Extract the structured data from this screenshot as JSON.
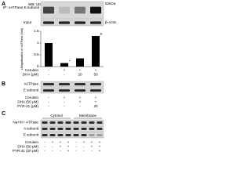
{
  "panel_a": {
    "letter": "A",
    "ip_label": "IP: vATPase E-subunit",
    "wb_label": "WB: Ub",
    "kda": "52kDa",
    "input_label": "Input",
    "input_band": "β-Actin",
    "conditions": [
      {
        "label": "Cerulein",
        "signs": [
          "-",
          "+",
          "+",
          "+"
        ]
      },
      {
        "label": "DHA (μM)",
        "signs": [
          "-",
          "-",
          "20",
          "50"
        ]
      }
    ],
    "chart": {
      "type": "bar",
      "y_label": "Ubiquitination of vATPase (fold)",
      "values": [
        1,
        0.15,
        0.35,
        1.3
      ],
      "ylim": [
        0,
        1.5
      ],
      "yticks": [
        0,
        0.5,
        1,
        1.5
      ],
      "color": "#000000",
      "markers": [
        null,
        "*",
        null,
        "#"
      ]
    },
    "chart_conditions": [
      {
        "label": "Cerulein",
        "signs": [
          "-",
          "+",
          "+",
          "+"
        ]
      },
      {
        "label": "DHA (μM)",
        "signs": [
          "-",
          "-",
          "20",
          "50"
        ]
      }
    ]
  },
  "panel_b": {
    "letter": "B",
    "bands": [
      "vATPase",
      "E subunit"
    ],
    "conditions": [
      {
        "label": "Cerulein",
        "signs": [
          "-",
          "+",
          "+",
          "+"
        ]
      },
      {
        "label": "DHA (50 μM)",
        "signs": [
          "-",
          "-",
          "+",
          "+"
        ]
      },
      {
        "label": "PYR-41 (μM)",
        "signs": [
          "-",
          "-",
          "-",
          "20"
        ]
      }
    ]
  },
  "panel_c": {
    "letter": "C",
    "fractions": [
      "Cytosol",
      "Membrane"
    ],
    "bands": [
      "Na+/K+ ATPase",
      "A subunit",
      "E subunit"
    ],
    "conditions": [
      {
        "label": "Cerulein",
        "signs": [
          "-",
          "+",
          "+",
          "+",
          "-",
          "+",
          "+",
          "+"
        ]
      },
      {
        "label": "DHA (50 μM)",
        "signs": [
          "-",
          "-",
          "+",
          "+",
          "-",
          "-",
          "+",
          "+"
        ]
      },
      {
        "label": "PYR-41 (20 μM)",
        "signs": [
          "-",
          "-",
          "-",
          "+",
          "-",
          "-",
          "-",
          "+"
        ]
      }
    ]
  }
}
